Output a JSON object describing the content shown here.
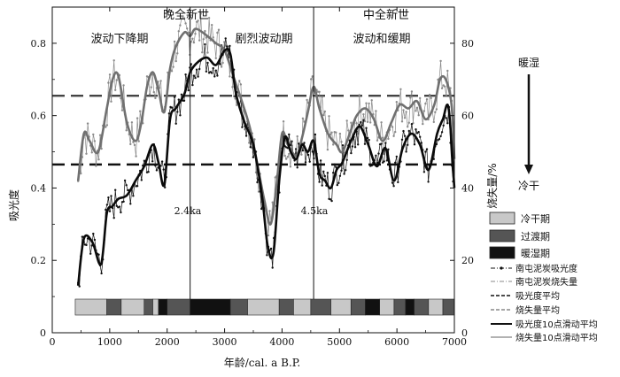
{
  "chart_data": {
    "type": "line",
    "xlabel": "年龄/cal. a B.P.",
    "ylabel": "吸光度",
    "y2label": "烧失量/%",
    "xlim": [
      0,
      7000
    ],
    "ylim": [
      0,
      0.9
    ],
    "y2lim": [
      0,
      90
    ],
    "x_ticks": [
      "0",
      "1000",
      "2000",
      "3000",
      "4000",
      "5000",
      "6000",
      "7000"
    ],
    "y_ticks": [
      "0",
      "0.2",
      "0.4",
      "0.6",
      "0.8"
    ],
    "y2_ticks": [
      "0",
      "20",
      "40",
      "60",
      "80"
    ],
    "epochs": [
      {
        "name": "晚全新世",
        "x": 2400
      },
      {
        "name": "中全新世",
        "x": 4500
      }
    ],
    "stage_labels": [
      "波动下降期",
      "剧烈波动期",
      "波动和缓期"
    ],
    "boundaries": [
      {
        "x": 2400,
        "label": "2.4ka"
      },
      {
        "x": 4550,
        "label": "4.5ka"
      }
    ],
    "mean_absorbance": 0.465,
    "mean_loi": 65.5,
    "series": [
      {
        "name": "吸光度10点滑动平均",
        "x": [
          450,
          550,
          700,
          850,
          950,
          1050,
          1150,
          1300,
          1450,
          1600,
          1750,
          1850,
          1950,
          2050,
          2150,
          2300,
          2400,
          2550,
          2700,
          2850,
          3000,
          3100,
          3200,
          3350,
          3500,
          3650,
          3750,
          3850,
          3950,
          4050,
          4150,
          4250,
          4350,
          4450,
          4550,
          4650,
          4750,
          4850,
          4950,
          5050,
          5200,
          5350,
          5500,
          5650,
          5800,
          5950,
          6100,
          6250,
          6400,
          6550,
          6700,
          6800,
          6900,
          7000
        ],
        "values": [
          0.13,
          0.26,
          0.25,
          0.19,
          0.33,
          0.35,
          0.37,
          0.38,
          0.42,
          0.46,
          0.52,
          0.47,
          0.41,
          0.59,
          0.62,
          0.66,
          0.72,
          0.75,
          0.76,
          0.74,
          0.78,
          0.77,
          0.66,
          0.58,
          0.52,
          0.38,
          0.24,
          0.22,
          0.42,
          0.54,
          0.5,
          0.48,
          0.52,
          0.5,
          0.53,
          0.44,
          0.42,
          0.4,
          0.45,
          0.47,
          0.53,
          0.57,
          0.52,
          0.46,
          0.51,
          0.42,
          0.51,
          0.55,
          0.52,
          0.45,
          0.55,
          0.59,
          0.62,
          0.4
        ]
      },
      {
        "name": "烧失量10点滑动平均",
        "x": [
          450,
          550,
          650,
          800,
          950,
          1050,
          1150,
          1300,
          1450,
          1550,
          1650,
          1750,
          1850,
          1950,
          2050,
          2150,
          2300,
          2400,
          2500,
          2700,
          2850,
          3000,
          3150,
          3300,
          3450,
          3600,
          3700,
          3800,
          3900,
          4000,
          4100,
          4250,
          4350,
          4450,
          4550,
          4650,
          4800,
          4950,
          5050,
          5200,
          5300,
          5450,
          5600,
          5750,
          5900,
          6050,
          6200,
          6350,
          6500,
          6650,
          6750,
          6850,
          6950,
          7000
        ],
        "values": [
          42,
          55,
          53,
          50,
          62,
          70,
          71,
          58,
          53,
          58,
          68,
          72,
          67,
          61,
          73,
          79,
          83,
          82,
          84,
          82,
          80,
          78,
          71,
          64,
          56,
          44,
          36,
          30,
          40,
          55,
          52,
          49,
          54,
          61,
          68,
          62,
          55,
          52,
          50,
          56,
          60,
          62,
          59,
          53,
          58,
          63,
          62,
          64,
          59,
          63,
          70,
          70,
          63,
          48
        ]
      },
      {
        "name": "南屯泥炭吸光度",
        "style": "points",
        "color": "#111111"
      },
      {
        "name": "南屯泥炭烧失量",
        "style": "points",
        "color": "#8a8a8a"
      }
    ],
    "stage_bar": [
      {
        "from": 400,
        "to": 950,
        "type": "cold"
      },
      {
        "from": 950,
        "to": 1200,
        "type": "transition"
      },
      {
        "from": 1200,
        "to": 1600,
        "type": "cold"
      },
      {
        "from": 1600,
        "to": 1750,
        "type": "transition"
      },
      {
        "from": 1750,
        "to": 1850,
        "type": "cold"
      },
      {
        "from": 1850,
        "to": 2000,
        "type": "warm"
      },
      {
        "from": 2000,
        "to": 2400,
        "type": "transition"
      },
      {
        "from": 2400,
        "to": 3100,
        "type": "warm"
      },
      {
        "from": 3100,
        "to": 3400,
        "type": "transition"
      },
      {
        "from": 3400,
        "to": 3950,
        "type": "cold"
      },
      {
        "from": 3950,
        "to": 4200,
        "type": "transition"
      },
      {
        "from": 4200,
        "to": 4500,
        "type": "cold"
      },
      {
        "from": 4500,
        "to": 4850,
        "type": "transition"
      },
      {
        "from": 4850,
        "to": 5200,
        "type": "cold"
      },
      {
        "from": 5200,
        "to": 5450,
        "type": "transition"
      },
      {
        "from": 5450,
        "to": 5700,
        "type": "warm"
      },
      {
        "from": 5700,
        "to": 5950,
        "type": "cold"
      },
      {
        "from": 5950,
        "to": 6150,
        "type": "transition"
      },
      {
        "from": 6150,
        "to": 6300,
        "type": "warm"
      },
      {
        "from": 6300,
        "to": 6550,
        "type": "transition"
      },
      {
        "from": 6550,
        "to": 6800,
        "type": "cold"
      },
      {
        "from": 6800,
        "to": 7000,
        "type": "transition"
      }
    ],
    "legend_stages": [
      {
        "label": "冷干期",
        "color": "#c8c8c8"
      },
      {
        "label": "过渡期",
        "color": "#555555"
      },
      {
        "label": "暖湿期",
        "color": "#111111"
      }
    ],
    "legend_lines": [
      "南屯泥炭吸光度",
      "南屯泥炭烧失量",
      "吸光度平均",
      "烧失量平均",
      "吸光度10点滑动平均",
      "烧失量10点滑动平均"
    ],
    "arrow_top": "暖湿",
    "arrow_bottom": "冷干"
  }
}
